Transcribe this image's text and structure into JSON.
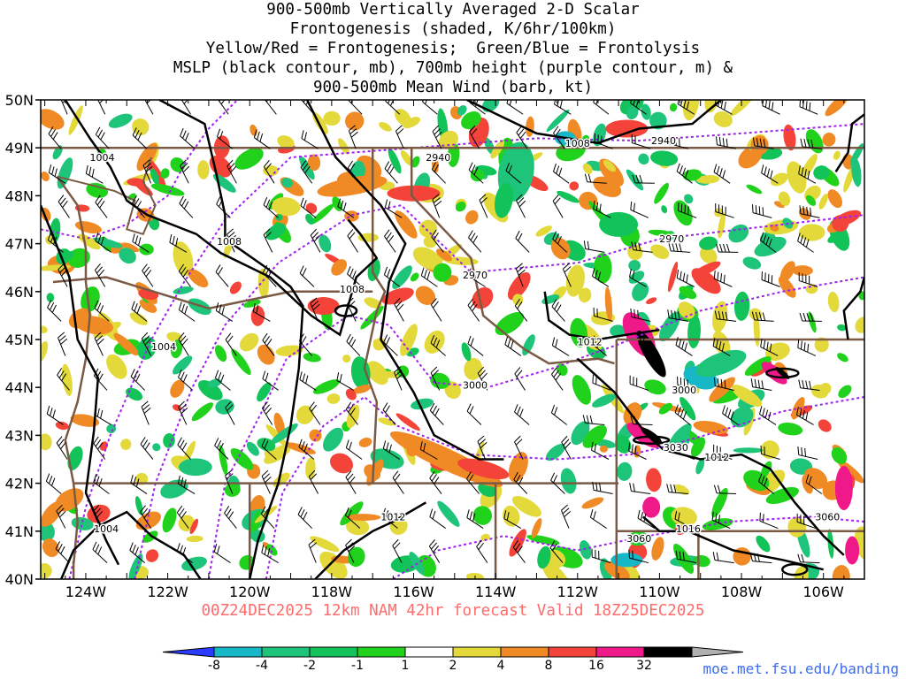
{
  "title_lines": [
    "900-500mb Vertically Averaged 2-D Scalar",
    "Frontogenesis (shaded, K/6hr/100km)",
    "Yellow/Red = Frontogenesis;  Green/Blue = Frontolysis",
    "MSLP (black contour, mb), 700mb height (purple contour, m) &",
    "900-500mb Mean Wind (barb, kt)"
  ],
  "forecast_label": "00Z24DEC2025 12km NAM 42hr forecast Valid 18Z25DEC2025",
  "credit": "moe.met.fsu.edu/banding",
  "lat_labels": [
    "50N",
    "49N",
    "48N",
    "47N",
    "46N",
    "45N",
    "44N",
    "43N",
    "42N",
    "41N",
    "40N"
  ],
  "lon_labels": [
    "124W",
    "122W",
    "120W",
    "118W",
    "116W",
    "114W",
    "112W",
    "110W",
    "108W",
    "106W"
  ],
  "colorbar": {
    "labels": [
      "-8",
      "-4",
      "-2",
      "-1",
      "1",
      "2",
      "4",
      "8",
      "16",
      "32"
    ],
    "colors": [
      "#2b3bff",
      "#16b8c8",
      "#1ec47a",
      "#12c35a",
      "#21d21c",
      "#ffffff",
      "#e3d93a",
      "#f08a24",
      "#f4443a",
      "#f0198a",
      "#000000",
      "#b0b0b0"
    ]
  },
  "mslp_labels": [
    {
      "text": "1004",
      "lon": -123.6,
      "lat": 48.8
    },
    {
      "text": "1008",
      "lon": -120.5,
      "lat": 47.05
    },
    {
      "text": "1008",
      "lon": -117.5,
      "lat": 46.05
    },
    {
      "text": "1004",
      "lon": -122.1,
      "lat": 44.85
    },
    {
      "text": "1008",
      "lon": -112.0,
      "lat": 49.1
    },
    {
      "text": "1012",
      "lon": -111.7,
      "lat": 44.95
    },
    {
      "text": "1012",
      "lon": -116.5,
      "lat": 41.3
    },
    {
      "text": "1004",
      "lon": -123.5,
      "lat": 41.05
    },
    {
      "text": "1012",
      "lon": -108.6,
      "lat": 42.55
    },
    {
      "text": "1016",
      "lon": -109.3,
      "lat": 41.05
    }
  ],
  "height_labels": [
    {
      "text": "2940",
      "lon": -109.9,
      "lat": 49.15
    },
    {
      "text": "2940",
      "lon": -115.4,
      "lat": 48.8
    },
    {
      "text": "2970",
      "lon": -109.7,
      "lat": 47.1
    },
    {
      "text": "2970",
      "lon": -114.5,
      "lat": 46.35
    },
    {
      "text": "3000",
      "lon": -114.5,
      "lat": 44.05
    },
    {
      "text": "3000",
      "lon": -109.4,
      "lat": 43.95
    },
    {
      "text": "3030",
      "lon": -109.6,
      "lat": 42.75
    },
    {
      "text": "3060",
      "lon": -105.9,
      "lat": 41.3
    },
    {
      "text": "3060",
      "lon": -110.5,
      "lat": 40.85
    }
  ]
}
